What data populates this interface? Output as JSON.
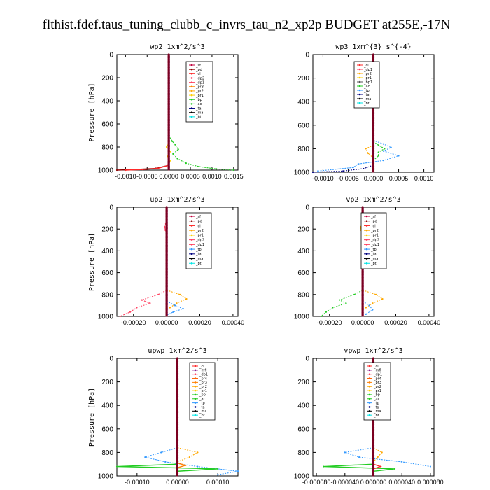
{
  "figure_title": "flthist.fdef.taus_tuning_clubb_c_invrs_tau_n2_xp2p  BUDGET at255E,-17N",
  "colors": {
    "_sf": "#c0003c",
    "_pd": "#8b0000",
    "_cl": "#ff2a2a",
    "_dp2": "#ff4060",
    "_dp1": "#ff4060",
    "_pr3": "#ff8000",
    "_pr2": "#ffa800",
    "_pr1": "#ffd000",
    "_pr4": "#ff6000",
    "_bp": "#22cc22",
    "_ac": "#22cc22",
    "_tp": "#3399ff",
    "_ta": "#000080",
    "_ma": "#000000",
    "_bt": "#00e5e5",
    "_mfl": "#8b1a8b",
    "_ma_line": "#6a1b9a"
  },
  "chart_data": [
    {
      "type": "line",
      "title": "wp2  1xm^2/s^3",
      "ylabel": "Pressure [hPa]",
      "ylim": [
        1000,
        0
      ],
      "xlim": [
        -0.0012,
        0.0016
      ],
      "xticks": [
        -0.001,
        -0.0005,
        0.0,
        0.0005,
        0.001,
        0.0015
      ],
      "xtick_labels": [
        "-0.0010",
        "-0.0005",
        "0.0000",
        "0.0005",
        "0.0010",
        "0.0015"
      ],
      "yticks": [
        0,
        200,
        400,
        600,
        800,
        1000
      ],
      "center": 0.0,
      "legend": [
        "_sf",
        "_pd",
        "_cl",
        "_dp2",
        "_dp1",
        "_pr3",
        "_pr2",
        "_pr1",
        "_bp",
        "_ac",
        "_ta",
        "_ma",
        "_bt"
      ],
      "series": [
        {
          "name": "_bp",
          "style": "dot",
          "y": [
            700,
            750,
            780,
            820,
            860,
            900,
            940,
            970,
            990,
            1000
          ],
          "x": [
            0.0,
            8e-05,
            0.00015,
            0.00022,
            0.0001,
            0.0002,
            0.0004,
            0.0007,
            0.0011,
            0.0015
          ]
        },
        {
          "name": "_pr1",
          "style": "dot",
          "y": [
            760,
            800,
            840,
            880,
            920,
            960
          ],
          "x": [
            0.0,
            -5e-05,
            4e-05,
            -3e-05,
            3e-05,
            0.0
          ]
        },
        {
          "name": "_pd",
          "style": "solid",
          "y": [
            900,
            960,
            985,
            995,
            1000
          ],
          "x": [
            0.0,
            -2e-05,
            -0.0003,
            -0.0008,
            -0.0012
          ]
        },
        {
          "name": "_cl",
          "style": "solid",
          "y": [
            900,
            960,
            985,
            995,
            1000
          ],
          "x": [
            0.0,
            -2e-05,
            -0.00025,
            -0.0006,
            -0.001
          ]
        }
      ]
    },
    {
      "type": "line",
      "title": "wp3  1xm^{3} s^{-4}",
      "ylabel": "",
      "ylim": [
        1000,
        0
      ],
      "xlim": [
        -0.0012,
        0.0012
      ],
      "xticks": [
        -0.001,
        -0.0005,
        0.0,
        0.0005,
        0.001
      ],
      "xtick_labels": [
        "-0.0010",
        "-0.0005",
        "0.0000",
        "0.0005",
        "0.0010"
      ],
      "yticks": [
        0,
        200,
        400,
        600,
        800,
        1000
      ],
      "center": 0.0,
      "legend": [
        "_cl",
        "_dp1",
        "_pr2",
        "_pr1",
        "_bp1",
        "_ac",
        "_tp",
        "_ta",
        "_ma",
        "_bt"
      ],
      "series": [
        {
          "name": "_tp",
          "style": "dot",
          "y": [
            730,
            760,
            790,
            820,
            860,
            900,
            930,
            960,
            990
          ],
          "x": [
            0.0,
            0.0002,
            0.00035,
            0.0002,
            0.0005,
            0.0002,
            -0.0003,
            -0.0004,
            -0.0011
          ]
        },
        {
          "name": "_bp",
          "style": "dot",
          "y": [
            740,
            770,
            800,
            830,
            860,
            900
          ],
          "x": [
            0.0,
            0.0001,
            0.00022,
            0.0001,
            0.0001,
            0.0
          ]
        },
        {
          "name": "_pr2",
          "style": "dot",
          "y": [
            770,
            800,
            840,
            880
          ],
          "x": [
            0.0,
            -0.00015,
            -0.0001,
            0.0
          ]
        },
        {
          "name": "_ta",
          "style": "dot",
          "y": [
            940,
            970,
            990,
            1000
          ],
          "x": [
            0.0,
            -0.0002,
            -0.0006,
            -0.0012
          ]
        }
      ]
    },
    {
      "type": "line",
      "title": "up2  1xm^2/s^3",
      "ylabel": "Pressure [hPa]",
      "ylim": [
        1000,
        0
      ],
      "xlim": [
        -0.0003,
        0.00043
      ],
      "xticks": [
        -0.0002,
        0.0,
        0.0002,
        0.0004
      ],
      "xtick_labels": [
        "-0.00020",
        "0.00000",
        "0.00020",
        "0.00040"
      ],
      "yticks": [
        0,
        200,
        400,
        600,
        800,
        1000
      ],
      "center": 0.0,
      "legend": [
        "_sf",
        "_pd",
        "_cl",
        "_pr2",
        "_pr1",
        "_dp2",
        "_dp1",
        "_tp",
        "_ta",
        "_ma",
        "_bt"
      ],
      "series": [
        {
          "name": "_dp2",
          "style": "dot",
          "y": [
            150,
            180,
            210,
            240
          ],
          "x": [
            -5e-06,
            -1.2e-05,
            -8e-06,
            0.0
          ]
        },
        {
          "name": "_dp2",
          "style": "dot",
          "y": [
            760,
            800,
            850,
            880,
            920,
            960,
            1000
          ],
          "x": [
            0.0,
            -5e-05,
            -0.00015,
            -0.0001,
            -0.00018,
            -0.00022,
            -0.00028
          ]
        },
        {
          "name": "_pr2",
          "style": "dot",
          "y": [
            760,
            800,
            840,
            880,
            920
          ],
          "x": [
            0.0,
            8e-05,
            0.00012,
            6e-05,
            2e-05
          ]
        },
        {
          "name": "_tp",
          "style": "dot",
          "y": [
            860,
            900,
            930,
            960,
            990
          ],
          "x": [
            0.0,
            5e-05,
            0.0001,
            4e-05,
            0.0
          ]
        }
      ]
    },
    {
      "type": "line",
      "title": "vp2  1xm^2/s^3",
      "ylabel": "",
      "ylim": [
        1000,
        0
      ],
      "xlim": [
        -0.0003,
        0.00043
      ],
      "xticks": [
        -0.0002,
        0.0,
        0.0002,
        0.0004
      ],
      "xtick_labels": [
        "-0.00020",
        "0.00000",
        "0.00020",
        "0.00040"
      ],
      "yticks": [
        0,
        200,
        400,
        600,
        800,
        1000
      ],
      "center": 0.0,
      "legend": [
        "_sf",
        "_pd",
        "_cl",
        "_pr2",
        "_pr1",
        "_dp2",
        "_dp1",
        "_tp",
        "_ta",
        "_ma",
        "_bt"
      ],
      "series": [
        {
          "name": "_tp",
          "style": "dot",
          "y": [
            150,
            180,
            200,
            220,
            250
          ],
          "x": [
            0.0,
            1.5e-05,
            3e-05,
            1.2e-05,
            0.0
          ]
        },
        {
          "name": "_pr2",
          "style": "dot",
          "y": [
            150,
            180,
            210,
            240
          ],
          "x": [
            0.0,
            -1.2e-05,
            -1e-05,
            0.0
          ]
        },
        {
          "name": "_bp",
          "style": "dot",
          "y": [
            760,
            800,
            850,
            880,
            920,
            960,
            1000
          ],
          "x": [
            0.0,
            -5e-05,
            -0.00014,
            -0.0001,
            -0.00018,
            -0.00022,
            -0.00025
          ]
        },
        {
          "name": "_pr2",
          "style": "dot",
          "y": [
            760,
            800,
            840,
            880,
            920
          ],
          "x": [
            0.0,
            8e-05,
            0.00012,
            6e-05,
            2e-05
          ]
        },
        {
          "name": "_tp",
          "style": "dot",
          "y": [
            860,
            900,
            940,
            980
          ],
          "x": [
            0.0,
            4e-05,
            6e-05,
            2e-05
          ]
        }
      ]
    },
    {
      "type": "line",
      "title": "upwp  1xm^2/s^3",
      "ylabel": "Pressure [hPa]",
      "ylim": [
        1000,
        0
      ],
      "xlim": [
        -0.00015,
        0.00015
      ],
      "xticks": [
        -0.0001,
        0.0,
        0.0001
      ],
      "xtick_labels": [
        "-0.00010",
        "0.00000",
        "0.00010"
      ],
      "yticks": [
        0,
        200,
        400,
        600,
        800,
        1000
      ],
      "center": 0.0,
      "legend": [
        "_cl",
        "_mfl",
        "_dp1",
        "_pr4",
        "_pr3",
        "_pr2",
        "_pr1",
        "_bp",
        "_ac",
        "_tp",
        "_ta",
        "_ma",
        "_bt"
      ],
      "series": [
        {
          "name": "_tp",
          "style": "dot",
          "y": [
            760,
            800,
            840,
            880,
            920,
            960,
            990
          ],
          "x": [
            0.0,
            -4e-05,
            -8e-05,
            -3e-05,
            5e-05,
            0.00015,
            0.0001
          ]
        },
        {
          "name": "_pr2",
          "style": "dot",
          "y": [
            760,
            800,
            840,
            880
          ],
          "x": [
            0.0,
            5e-05,
            3e-05,
            0.0
          ]
        },
        {
          "name": "_bp",
          "style": "solid",
          "y": [
            900,
            920,
            940,
            960
          ],
          "x": [
            0.0,
            -0.00015,
            0.0001,
            0.0
          ]
        },
        {
          "name": "_pr3",
          "style": "solid",
          "y": [
            890,
            910,
            930
          ],
          "x": [
            0.0,
            2e-05,
            0.0
          ]
        }
      ]
    },
    {
      "type": "line",
      "title": "vpwp  1xm^2/s^3",
      "ylabel": "",
      "ylim": [
        1000,
        0
      ],
      "xlim": [
        -8.5e-05,
        8.5e-05
      ],
      "xticks": [
        -8e-05,
        -4e-05,
        0.0,
        4e-05,
        8e-05
      ],
      "xtick_labels": [
        "-0.000080",
        "-0.000040",
        "0.000000",
        "0.000040",
        "0.000080"
      ],
      "yticks": [
        0,
        200,
        400,
        600,
        800,
        1000
      ],
      "center": 0.0,
      "legend": [
        "_cl",
        "_mfl",
        "_dp1",
        "_pr4",
        "_pr3",
        "_pr2",
        "_pr1",
        "_bp",
        "_ac",
        "_tp",
        "_ta",
        "_ma",
        "_bt"
      ],
      "series": [
        {
          "name": "_pr2",
          "style": "dot",
          "y": [
            150,
            190,
            220,
            250
          ],
          "x": [
            0.0,
            -8e-06,
            -6e-06,
            0.0
          ]
        },
        {
          "name": "_tp",
          "style": "dot",
          "y": [
            140,
            180,
            220,
            260
          ],
          "x": [
            0.0,
            4e-06,
            2e-06,
            0.0
          ]
        },
        {
          "name": "_tp",
          "style": "dot",
          "y": [
            760,
            800,
            840,
            880,
            920
          ],
          "x": [
            0.0,
            -4e-05,
            -2e-05,
            4e-05,
            8e-05
          ]
        },
        {
          "name": "_pr2",
          "style": "dot",
          "y": [
            760,
            800,
            840,
            880
          ],
          "x": [
            0.0,
            1.2e-05,
            6e-06,
            0.0
          ]
        },
        {
          "name": "_bp",
          "style": "solid",
          "y": [
            900,
            920,
            940,
            960
          ],
          "x": [
            0.0,
            -7e-05,
            3e-05,
            0.0
          ]
        },
        {
          "name": "_cl",
          "style": "solid",
          "y": [
            900,
            920,
            940
          ],
          "x": [
            0.0,
            1e-05,
            0.0
          ]
        }
      ]
    }
  ]
}
